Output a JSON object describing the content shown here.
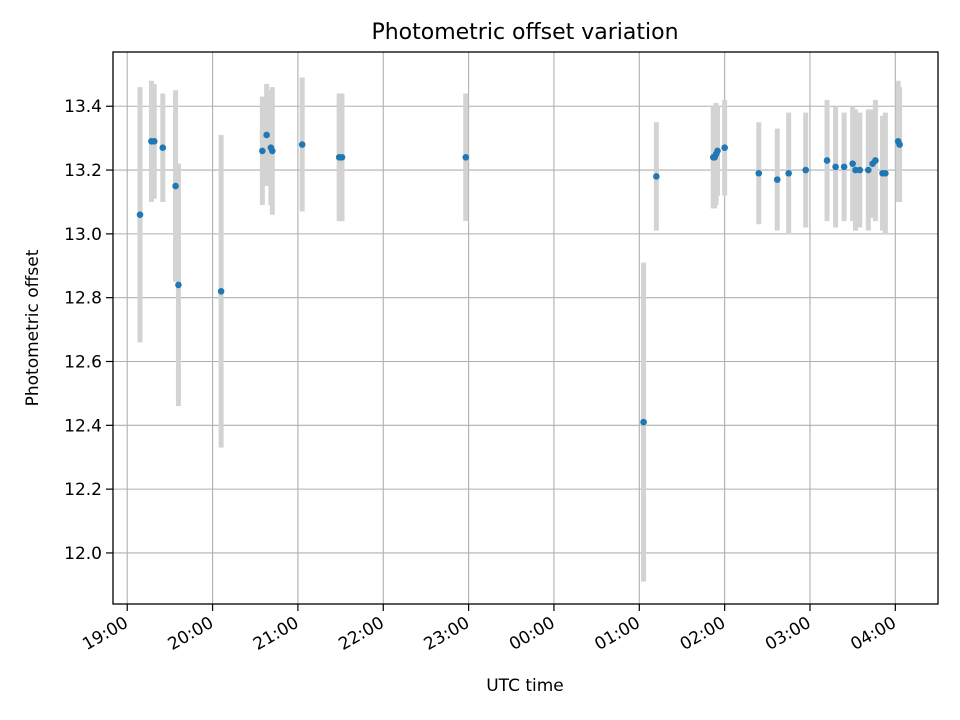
{
  "chart_data": {
    "type": "scatter",
    "title": "Photometric offset variation",
    "xlabel": "UTC time",
    "ylabel": "Photometric offset",
    "x_is_time": true,
    "xlim": [
      "18:50",
      "04:30"
    ],
    "ylim": [
      11.84,
      13.57
    ],
    "x_ticks": [
      "19:00",
      "20:00",
      "21:00",
      "22:00",
      "23:00",
      "00:00",
      "01:00",
      "02:00",
      "03:00",
      "04:00"
    ],
    "y_ticks": [
      12.0,
      12.2,
      12.4,
      12.6,
      12.8,
      13.0,
      13.2,
      13.4
    ],
    "y_tick_labels": [
      "12.0",
      "12.2",
      "12.4",
      "12.6",
      "12.8",
      "13.0",
      "13.2",
      "13.4"
    ],
    "grid": true,
    "point_color": "#1f77b4",
    "errorbar_color": "#d3d3d3",
    "points": [
      {
        "t": "19:09",
        "y": 13.06,
        "err": 0.4
      },
      {
        "t": "19:17",
        "y": 13.29,
        "err": 0.19
      },
      {
        "t": "19:19",
        "y": 13.29,
        "err": 0.18
      },
      {
        "t": "19:25",
        "y": 13.27,
        "err": 0.17
      },
      {
        "t": "19:34",
        "y": 13.15,
        "err": 0.3
      },
      {
        "t": "19:36",
        "y": 12.84,
        "err": 0.38
      },
      {
        "t": "20:06",
        "y": 12.82,
        "err": 0.49
      },
      {
        "t": "20:35",
        "y": 13.26,
        "err": 0.17
      },
      {
        "t": "20:38",
        "y": 13.31,
        "err": 0.16
      },
      {
        "t": "20:41",
        "y": 13.27,
        "err": 0.18
      },
      {
        "t": "20:42",
        "y": 13.26,
        "err": 0.2
      },
      {
        "t": "21:03",
        "y": 13.28,
        "err": 0.21
      },
      {
        "t": "21:29",
        "y": 13.24,
        "err": 0.2
      },
      {
        "t": "21:31",
        "y": 13.24,
        "err": 0.2
      },
      {
        "t": "22:58",
        "y": 13.24,
        "err": 0.2
      },
      {
        "t": "01:03",
        "y": 12.41,
        "err": 0.5
      },
      {
        "t": "01:12",
        "y": 13.18,
        "err": 0.17
      },
      {
        "t": "01:52",
        "y": 13.24,
        "err": 0.16
      },
      {
        "t": "01:53",
        "y": 13.24,
        "err": 0.16
      },
      {
        "t": "01:54",
        "y": 13.25,
        "err": 0.16
      },
      {
        "t": "01:55",
        "y": 13.26,
        "err": 0.14
      },
      {
        "t": "02:00",
        "y": 13.27,
        "err": 0.15
      },
      {
        "t": "02:24",
        "y": 13.19,
        "err": 0.16
      },
      {
        "t": "02:37",
        "y": 13.17,
        "err": 0.16
      },
      {
        "t": "02:45",
        "y": 13.19,
        "err": 0.19
      },
      {
        "t": "02:57",
        "y": 13.2,
        "err": 0.18
      },
      {
        "t": "03:12",
        "y": 13.23,
        "err": 0.19
      },
      {
        "t": "03:18",
        "y": 13.21,
        "err": 0.19
      },
      {
        "t": "03:24",
        "y": 13.21,
        "err": 0.17
      },
      {
        "t": "03:30",
        "y": 13.22,
        "err": 0.18
      },
      {
        "t": "03:32",
        "y": 13.2,
        "err": 0.19
      },
      {
        "t": "03:35",
        "y": 13.2,
        "err": 0.18
      },
      {
        "t": "03:41",
        "y": 13.2,
        "err": 0.19
      },
      {
        "t": "03:44",
        "y": 13.22,
        "err": 0.17
      },
      {
        "t": "03:46",
        "y": 13.23,
        "err": 0.19
      },
      {
        "t": "03:51",
        "y": 13.19,
        "err": 0.18
      },
      {
        "t": "03:53",
        "y": 13.19,
        "err": 0.19
      },
      {
        "t": "04:02",
        "y": 13.29,
        "err": 0.19
      },
      {
        "t": "04:03",
        "y": 13.28,
        "err": 0.18
      }
    ]
  }
}
